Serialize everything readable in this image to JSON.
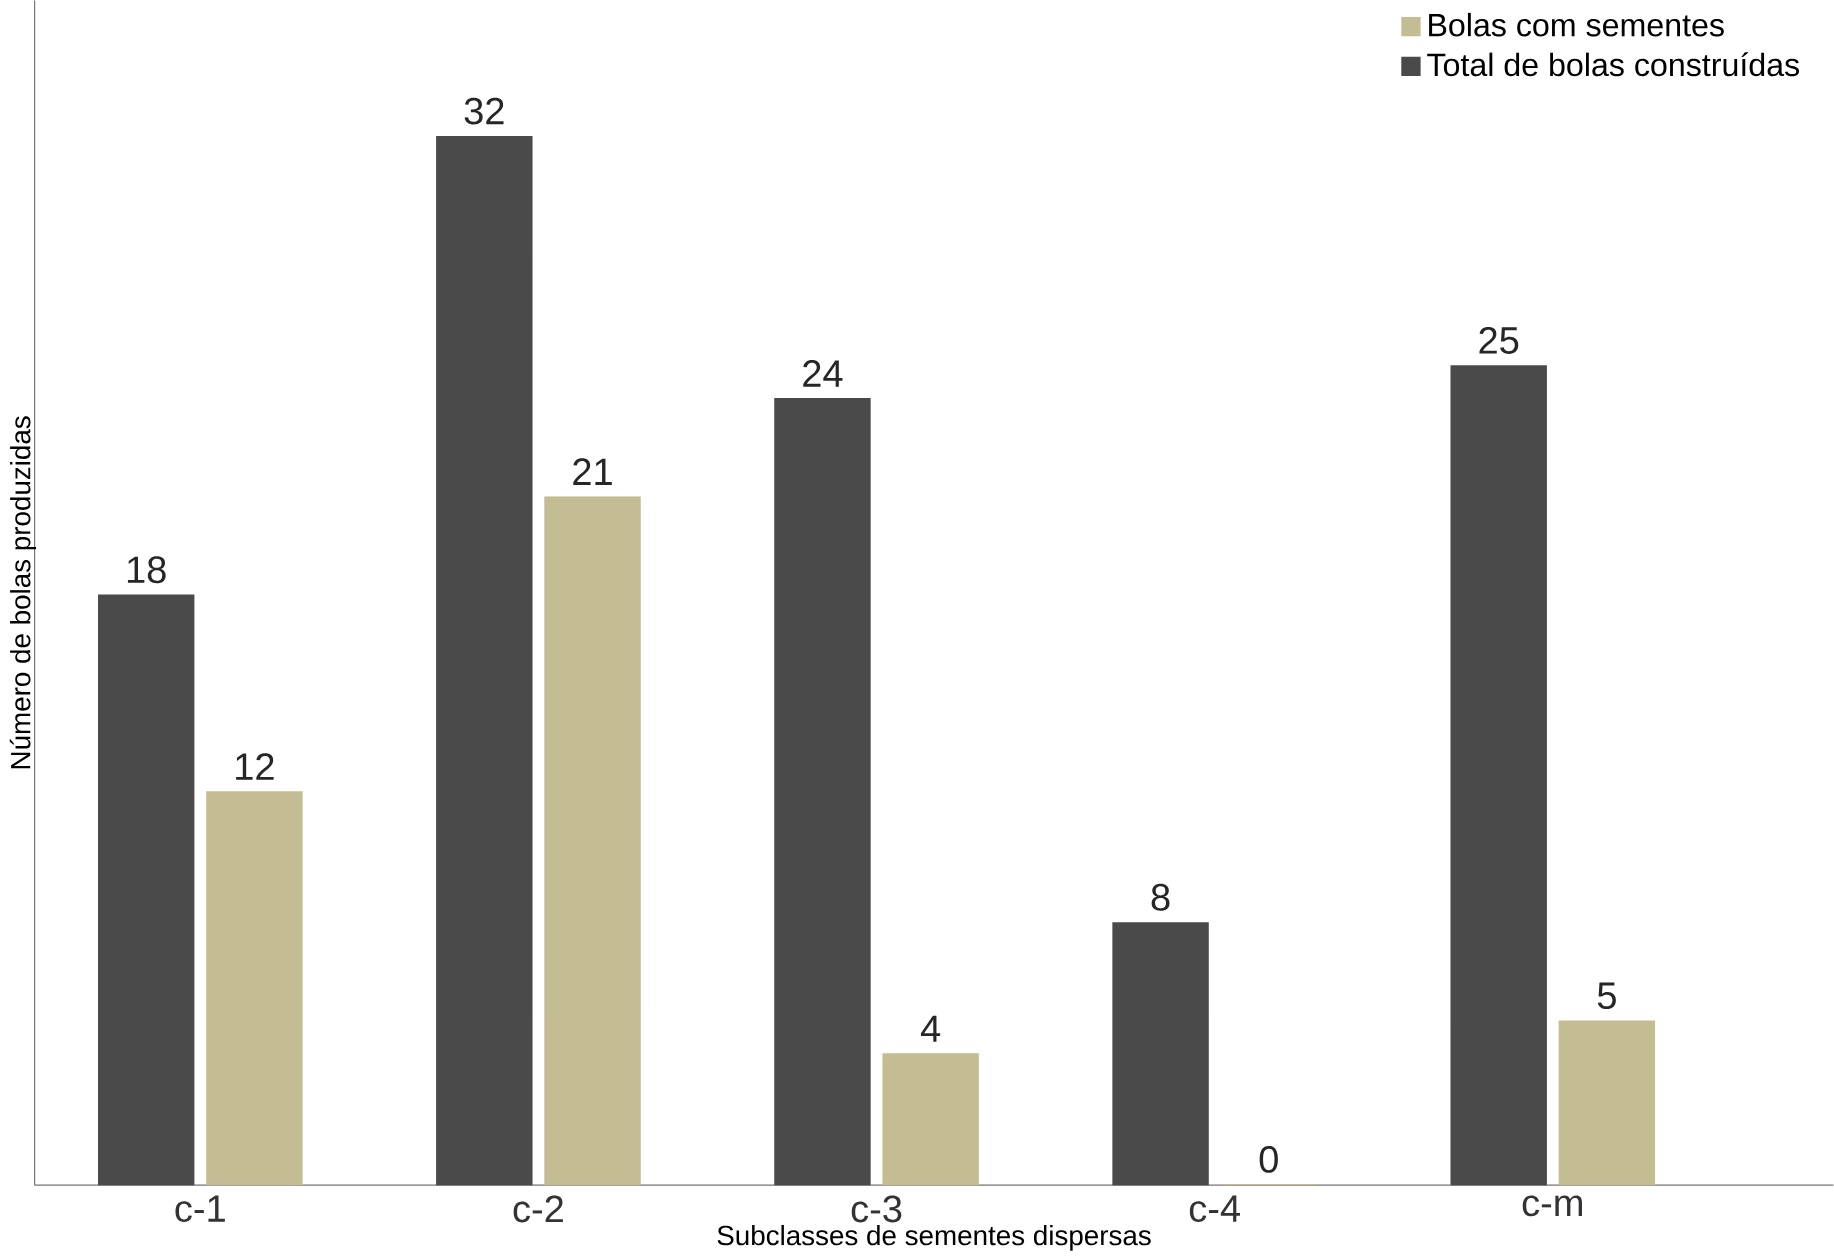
{
  "chart_data": {
    "type": "bar",
    "xlabel": "Subclasses de sementes dispersas",
    "ylabel": "Número de bolas produzidas",
    "categories": [
      "c-1",
      "c-2",
      "c-3",
      "c-4",
      "c-m"
    ],
    "series": [
      {
        "name": "Bolas com sementes",
        "color": "#c4bc92",
        "values": [
          12,
          21,
          4,
          0,
          5
        ]
      },
      {
        "name": "Total de bolas construídas",
        "color": "#4a4a4a",
        "values": [
          18,
          32,
          24,
          8,
          25
        ]
      }
    ],
    "data_labels": true,
    "legend": "top right",
    "tick_labels": "x"
  }
}
